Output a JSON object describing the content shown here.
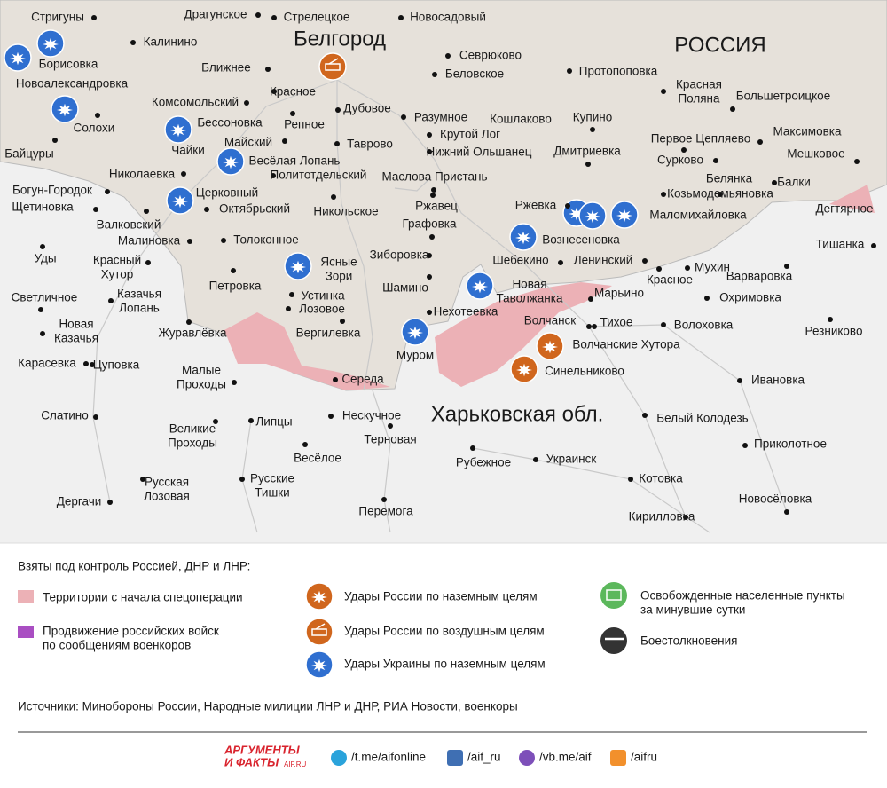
{
  "map": {
    "city_main": "Белгород",
    "regions": [
      "РОССИЯ",
      "Харьковская обл."
    ],
    "places": [
      "Стригуны",
      "Драгунское",
      "Стрелецкое",
      "Новосадовый",
      "Калинино",
      "Севрюково",
      "Борисовка",
      "Ближнее",
      "Беловское",
      "Протопоповка",
      "Новоалександровка",
      [
        "Красная",
        "Поляна"
      ],
      "Комсомольский",
      "Красное",
      "Большетроицкое",
      "Дубовое",
      "Солохи",
      "Бессоновка",
      "Репное",
      "Разумное",
      "Кошлаково",
      "Купино",
      "Максимовка",
      "Майский",
      "Крутой Лог",
      "Первое Цепляево",
      "Байцуры",
      "Чайки",
      "Таврово",
      "Нижний Ольшанец",
      "Дмитриевка",
      "Весёлая Лопань",
      "Мешковое",
      "Сурково",
      "Николаевка",
      "Политотдельский",
      "Маслова Пристань",
      "Белянка",
      "Балки",
      "Богун-Городок",
      "Церковный",
      "Козьмодемьяновка",
      "Щетиновка",
      "Октябрьский",
      "Никольское",
      "Ржавец",
      "Ржевка",
      "Маломихайловка",
      "Дегтярное",
      "Валковский",
      "Графовка",
      "Вознесеновка",
      "Малиновка",
      "Толоконное",
      "Тишанка",
      "Уды",
      [
        "Красный",
        "Хутор"
      ],
      "Зиборовка",
      "Шебекино",
      "Ленинский",
      "Мухин",
      [
        "Ясные",
        "Зори"
      ],
      "Варваровка",
      "Красное",
      "Петровка",
      "Шамино",
      [
        "Новая",
        "Таволжанка"
      ],
      "Марьино",
      "Охримовка",
      "Светличное",
      "Устинка",
      [
        "Казачья",
        "Лопань"
      ],
      "Лозовое",
      "Нехотеевка",
      "Волчанск",
      "Тихое",
      "Волоховка",
      "Резниково",
      [
        "Новая",
        "Казачья"
      ],
      "Журавлёвка",
      "Вергилевка",
      "Волчанские Хутора",
      "Муром",
      "Карасевка",
      "Цуповка",
      "Синельниково",
      [
        "Малые",
        "Проходы"
      ],
      "Середа",
      "Ивановка",
      "Нескучное",
      "Белый Колодезь",
      "Слатино",
      "Липцы",
      [
        "Великие",
        "Проходы"
      ],
      "Терновая",
      "Приколотное",
      "Весёлое",
      "Рубежное",
      "Украинск",
      "Котовка",
      [
        "Русская",
        "Лозовая"
      ],
      [
        "Русские",
        "Тишки"
      ],
      "Новосёловка",
      "Дергачи",
      "Перемога",
      "Кирилловка"
    ]
  },
  "legend": {
    "title": "Взяты под контроль Россией, ДНР и ЛНР:",
    "items": [
      "Территории с начала спецоперации",
      [
        "Продвижение российских войск",
        "по сообщениям военкоров"
      ],
      "Удары России по наземным целям",
      "Удары России по воздушным целям",
      "Удары Украины по наземным целям",
      [
        "Освобожденные населенные пункты",
        "за минувшие сутки"
      ],
      "Боестолкновения"
    ]
  },
  "sources": "Источники: Минобороны России, Народные милиции ЛНР и ДНР, РИА Новости, военкоры",
  "footer": {
    "logo": [
      "АРГУМЕНТЫ",
      "И ФАКТЫ"
    ],
    "logo_site": "AIF.RU",
    "links": [
      "/t.me/aifonline",
      "/aif_ru",
      "/vb.me/aif",
      "/aifru"
    ]
  }
}
